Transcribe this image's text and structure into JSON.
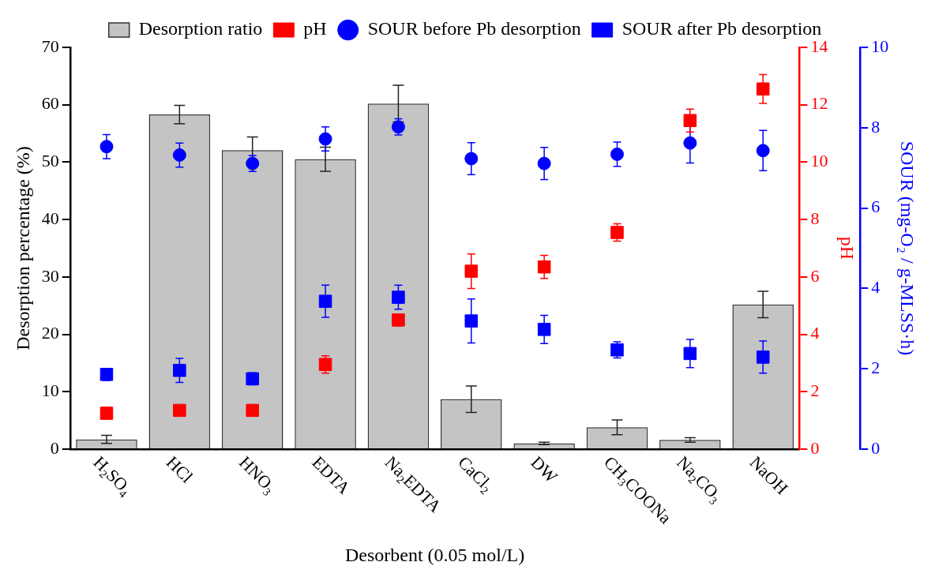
{
  "chart_data": {
    "type": "bar",
    "categories": [
      "H$_{2}$SO$_{4}$",
      "HCl",
      "HNO$_{3}$",
      "EDTA",
      "Na$_{2}$EDTA",
      "CaCl$_{2}$",
      "DW",
      "CH$_{3}$COONa",
      "Na$_{2}$CO$_{3}$",
      "NaOH"
    ],
    "series": [
      {
        "name": "Desorption ratio",
        "color": "#c4c4c4",
        "values": [
          1.7,
          58.3,
          52.1,
          50.5,
          60.2,
          8.7,
          1.0,
          3.8,
          1.6,
          25.2
        ],
        "errors": [
          0.7,
          1.6,
          2.3,
          2.1,
          3.2,
          2.3,
          0.2,
          1.3,
          0.4,
          2.3
        ]
      },
      {
        "name": "pH",
        "type": "scatter",
        "axis": "y2",
        "marker": "square",
        "color": "#ff0000",
        "values": [
          1.25,
          1.35,
          1.35,
          2.95,
          4.5,
          6.2,
          6.35,
          7.55,
          11.45,
          12.55
        ],
        "errors": [
          0.2,
          0.05,
          0.2,
          0.3,
          0.2,
          0.6,
          0.4,
          0.3,
          0.4,
          0.5
        ]
      },
      {
        "name": "SOUR before Pb desorption",
        "type": "scatter",
        "axis": "y3",
        "marker": "circle",
        "color": "#0000ff",
        "values": [
          7.53,
          7.32,
          7.11,
          7.72,
          8.02,
          7.23,
          7.11,
          7.34,
          7.62,
          7.43
        ],
        "errors": [
          0.3,
          0.3,
          0.2,
          0.3,
          0.2,
          0.4,
          0.4,
          0.3,
          0.5,
          0.5
        ]
      },
      {
        "name": "SOUR after Pb desorption",
        "type": "scatter",
        "axis": "y3",
        "marker": "square",
        "color": "#0000ff",
        "values": [
          1.86,
          1.96,
          1.75,
          3.68,
          3.78,
          3.19,
          2.98,
          2.47,
          2.38,
          2.29
        ],
        "errors": [
          0.15,
          0.3,
          0.15,
          0.4,
          0.3,
          0.55,
          0.35,
          0.2,
          0.35,
          0.4
        ]
      }
    ],
    "xlabel": "Desorbent (0.05 mol/L)",
    "ylabel": "Desorption percentage (%)",
    "y2label": "pH",
    "y3label": "SOUR (mg-O₂ / g-MLSS·h)",
    "ylim": [
      0,
      70
    ],
    "yticks": [
      0,
      10,
      20,
      30,
      40,
      50,
      60,
      70
    ],
    "y2lim": [
      0,
      14
    ],
    "y2ticks": [
      0,
      2,
      4,
      6,
      8,
      10,
      12,
      14
    ],
    "y3lim": [
      0,
      10
    ],
    "y3ticks": [
      0,
      2,
      4,
      6,
      8,
      10
    ],
    "legend": "top"
  }
}
